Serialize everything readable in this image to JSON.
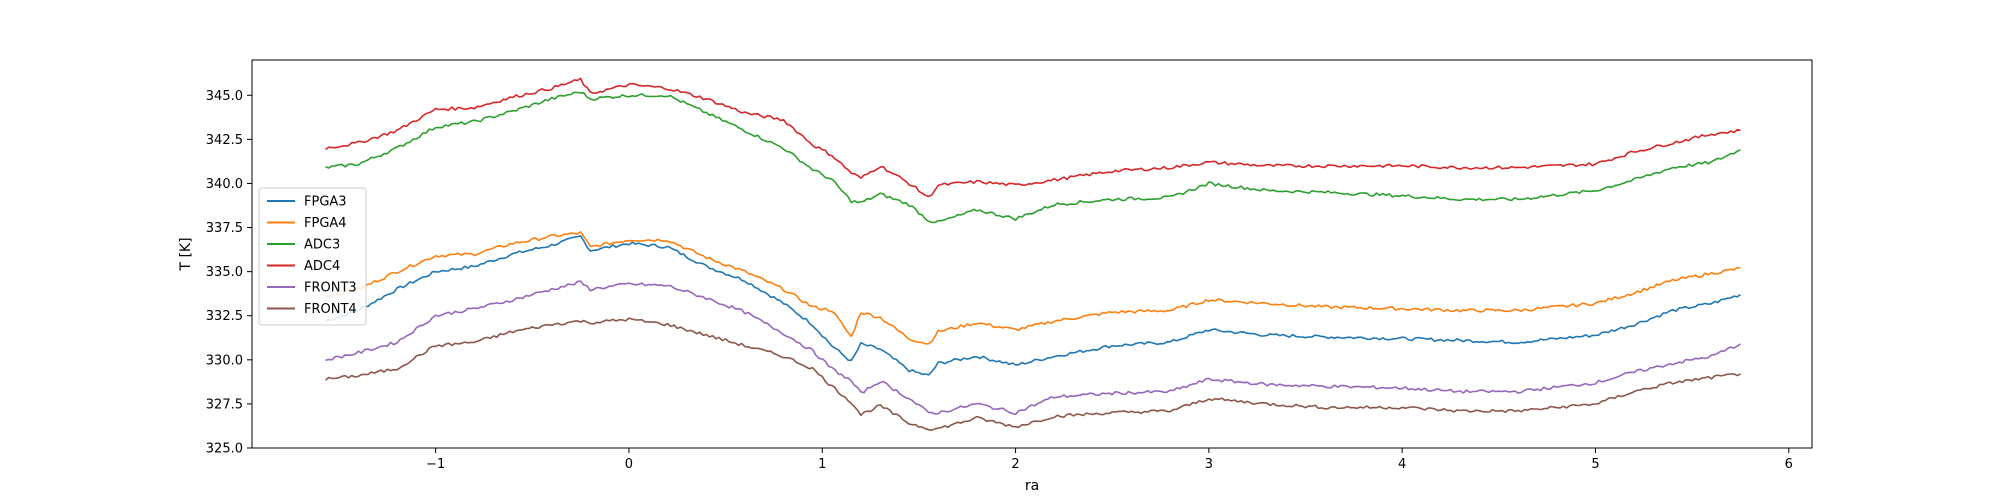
{
  "chart_data": {
    "type": "line",
    "title": "",
    "xlabel": "ra",
    "ylabel": "T [K]",
    "xlim": [
      -1.95,
      6.12
    ],
    "ylim": [
      325.0,
      347.0
    ],
    "xticks": [
      -1,
      0,
      1,
      2,
      3,
      4,
      5,
      6
    ],
    "xtick_labels": [
      "−1",
      "0",
      "1",
      "2",
      "3",
      "4",
      "5",
      "6"
    ],
    "yticks": [
      325.0,
      327.5,
      330.0,
      332.5,
      335.0,
      337.5,
      340.0,
      342.5,
      345.0
    ],
    "ytick_labels": [
      "325.0",
      "327.5",
      "330.0",
      "332.5",
      "335.0",
      "337.5",
      "340.0",
      "342.5",
      "345.0"
    ],
    "grid": false,
    "legend_position": "center-left",
    "series": [
      {
        "name": "FPGA3",
        "color": "#1f77b4",
        "x": [
          -1.57,
          -1.4,
          -1.2,
          -1.0,
          -0.8,
          -0.6,
          -0.4,
          -0.25,
          -0.2,
          0.0,
          0.2,
          0.4,
          0.6,
          0.8,
          0.95,
          1.05,
          1.15,
          1.2,
          1.3,
          1.45,
          1.55,
          1.6,
          1.8,
          2.0,
          2.2,
          2.5,
          2.8,
          3.0,
          3.3,
          3.6,
          4.0,
          4.3,
          4.6,
          5.0,
          5.2,
          5.4,
          5.6,
          5.75
        ],
        "y": [
          332.2,
          332.8,
          334.0,
          335.0,
          335.3,
          336.0,
          336.5,
          337.0,
          336.2,
          336.6,
          336.4,
          335.3,
          334.5,
          333.2,
          332.0,
          330.8,
          329.9,
          330.9,
          330.6,
          329.4,
          329.1,
          329.8,
          330.2,
          329.7,
          330.2,
          330.8,
          331.0,
          331.7,
          331.4,
          331.3,
          331.2,
          331.1,
          331.0,
          331.4,
          332.0,
          332.8,
          333.2,
          333.7
        ]
      },
      {
        "name": "FPGA4",
        "color": "#ff7f0e",
        "x": [
          -1.57,
          -1.4,
          -1.2,
          -1.0,
          -0.8,
          -0.6,
          -0.4,
          -0.25,
          -0.2,
          0.0,
          0.2,
          0.4,
          0.6,
          0.8,
          0.95,
          1.05,
          1.15,
          1.2,
          1.3,
          1.45,
          1.55,
          1.6,
          1.8,
          2.0,
          2.2,
          2.5,
          2.8,
          3.0,
          3.3,
          3.6,
          4.0,
          4.3,
          4.6,
          5.0,
          5.2,
          5.4,
          5.6,
          5.75
        ],
        "y": [
          333.6,
          334.0,
          335.0,
          335.9,
          336.0,
          336.6,
          337.0,
          337.2,
          336.4,
          336.8,
          336.8,
          335.8,
          335.0,
          334.0,
          333.0,
          332.8,
          331.3,
          332.7,
          332.4,
          331.2,
          330.9,
          331.6,
          332.1,
          331.7,
          332.2,
          332.7,
          332.8,
          333.4,
          333.2,
          333.0,
          332.9,
          332.8,
          332.8,
          333.2,
          333.8,
          334.5,
          334.9,
          335.2
        ]
      },
      {
        "name": "ADC3",
        "color": "#2ca02c",
        "x": [
          -1.57,
          -1.4,
          -1.2,
          -1.0,
          -0.8,
          -0.6,
          -0.4,
          -0.25,
          -0.2,
          0.0,
          0.2,
          0.4,
          0.6,
          0.8,
          0.95,
          1.05,
          1.15,
          1.2,
          1.3,
          1.45,
          1.55,
          1.6,
          1.8,
          2.0,
          2.2,
          2.5,
          2.8,
          3.0,
          3.3,
          3.6,
          4.0,
          4.3,
          4.6,
          5.0,
          5.2,
          5.4,
          5.6,
          5.75
        ],
        "y": [
          340.9,
          341.1,
          342.0,
          343.2,
          343.5,
          344.1,
          344.8,
          345.2,
          344.8,
          345.0,
          345.0,
          344.0,
          343.0,
          342.0,
          340.8,
          340.2,
          339.0,
          338.9,
          339.4,
          338.8,
          337.9,
          337.8,
          338.5,
          338.0,
          338.8,
          339.1,
          339.2,
          340.0,
          339.6,
          339.5,
          339.3,
          339.1,
          339.1,
          339.6,
          340.2,
          340.9,
          341.2,
          341.9
        ]
      },
      {
        "name": "ADC4",
        "color": "#d62728",
        "x": [
          -1.57,
          -1.4,
          -1.2,
          -1.0,
          -0.8,
          -0.6,
          -0.4,
          -0.25,
          -0.2,
          0.0,
          0.2,
          0.4,
          0.6,
          0.8,
          0.95,
          1.05,
          1.15,
          1.2,
          1.3,
          1.45,
          1.55,
          1.6,
          1.8,
          2.0,
          2.2,
          2.5,
          2.8,
          3.0,
          3.3,
          3.6,
          4.0,
          4.3,
          4.6,
          5.0,
          5.2,
          5.4,
          5.6,
          5.75
        ],
        "y": [
          342.0,
          342.3,
          343.0,
          344.2,
          344.3,
          344.9,
          345.4,
          345.9,
          345.1,
          345.6,
          345.4,
          344.8,
          344.0,
          343.6,
          342.2,
          341.6,
          340.6,
          340.3,
          341.0,
          340.0,
          339.2,
          339.9,
          340.1,
          339.9,
          340.2,
          340.7,
          340.9,
          341.2,
          341.0,
          341.0,
          341.0,
          340.9,
          340.9,
          341.1,
          341.8,
          342.3,
          342.8,
          343.0
        ]
      },
      {
        "name": "FRONT3",
        "color": "#9467bd",
        "x": [
          -1.57,
          -1.4,
          -1.2,
          -1.0,
          -0.8,
          -0.6,
          -0.4,
          -0.25,
          -0.2,
          0.0,
          0.2,
          0.4,
          0.6,
          0.8,
          0.95,
          1.05,
          1.15,
          1.2,
          1.3,
          1.45,
          1.55,
          1.6,
          1.8,
          2.0,
          2.2,
          2.5,
          2.8,
          3.0,
          3.3,
          3.6,
          4.0,
          4.3,
          4.6,
          5.0,
          5.2,
          5.4,
          5.6,
          5.75
        ],
        "y": [
          330.0,
          330.4,
          331.0,
          332.5,
          332.9,
          333.4,
          334.0,
          334.4,
          334.0,
          334.3,
          334.2,
          333.5,
          332.7,
          331.5,
          330.5,
          329.5,
          328.8,
          328.1,
          328.8,
          327.8,
          327.0,
          327.0,
          327.5,
          327.0,
          327.9,
          328.1,
          328.2,
          328.9,
          328.6,
          328.5,
          328.4,
          328.2,
          328.2,
          328.7,
          329.3,
          329.8,
          330.2,
          330.9
        ]
      },
      {
        "name": "FRONT4",
        "color": "#8c564b",
        "x": [
          -1.57,
          -1.4,
          -1.2,
          -1.0,
          -0.8,
          -0.6,
          -0.4,
          -0.25,
          -0.2,
          0.0,
          0.2,
          0.4,
          0.6,
          0.8,
          0.95,
          1.05,
          1.15,
          1.2,
          1.3,
          1.45,
          1.55,
          1.6,
          1.8,
          2.0,
          2.2,
          2.5,
          2.8,
          3.0,
          3.3,
          3.6,
          4.0,
          4.3,
          4.6,
          5.0,
          5.2,
          5.4,
          5.6,
          5.75
        ],
        "y": [
          328.9,
          329.1,
          329.5,
          330.8,
          331.0,
          331.6,
          332.0,
          332.2,
          332.1,
          332.3,
          332.0,
          331.4,
          330.8,
          330.2,
          329.5,
          328.5,
          327.6,
          326.9,
          327.4,
          326.4,
          326.1,
          326.1,
          326.7,
          326.2,
          326.8,
          327.0,
          327.1,
          327.8,
          327.5,
          327.3,
          327.3,
          327.1,
          327.1,
          327.5,
          328.2,
          328.7,
          329.0,
          329.2
        ]
      }
    ]
  }
}
